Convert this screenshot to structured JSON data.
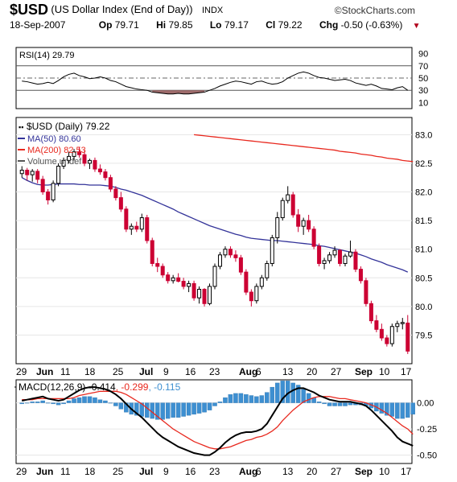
{
  "header": {
    "symbol": "$USD",
    "name": "(US Dollar Index (End of Day))",
    "exchange": "INDX",
    "brand": "©StockCharts.com",
    "date": "18-Sep-2007",
    "open_label": "Op",
    "open": "79.71",
    "high_label": "Hi",
    "high": "79.85",
    "low_label": "Lo",
    "low": "79.17",
    "close_label": "Cl",
    "close": "79.22",
    "change_label": "Chg",
    "change": "-0.50 (-0.63%)",
    "change_arrow": "▼"
  },
  "colors": {
    "up": "#000000",
    "down": "#cc0033",
    "ma50": "#333399",
    "ma200": "#e8281e",
    "macd_line": "#000000",
    "macd_signal": "#e8281e",
    "histogram": "#3d8fd1",
    "rsi_oversold_fill": "#9e6b6b"
  },
  "chart_data": [
    {
      "type": "line",
      "title": "RSI(14) 29.79",
      "ylim": [
        0,
        100
      ],
      "ticks": [
        "90",
        "70",
        "50",
        "30",
        "10"
      ],
      "reference_lines": [
        70,
        50,
        30
      ],
      "series": [
        {
          "name": "RSI(14)",
          "values": [
            45,
            44,
            42,
            40,
            41,
            43,
            41,
            46,
            52,
            56,
            58,
            54,
            52,
            49,
            50,
            52,
            50,
            46,
            44,
            40,
            36,
            34,
            32,
            31,
            30,
            27,
            26,
            25,
            24,
            24,
            25,
            24,
            24,
            25,
            26,
            27,
            30,
            33,
            37,
            40,
            43,
            45,
            44,
            42,
            40,
            44,
            45,
            42,
            40,
            41,
            44,
            50,
            54,
            58,
            60,
            58,
            54,
            51,
            50,
            48,
            46,
            47,
            48,
            46,
            42,
            40,
            38,
            40,
            37,
            33,
            32,
            31,
            34,
            36,
            30
          ]
        }
      ]
    },
    {
      "type": "candlestick",
      "title": "$USD (Daily) 79.22",
      "legend": [
        {
          "label": "MA(50) 80.60",
          "color": "#333399"
        },
        {
          "label": "MA(200) 82.53",
          "color": "#e8281e"
        },
        {
          "label": "Volume undef",
          "color": "#555555"
        }
      ],
      "ylim": [
        79.0,
        83.3
      ],
      "y_ticks": [
        "83.0",
        "82.5",
        "82.0",
        "81.5",
        "81.0",
        "80.5",
        "80.0",
        "79.5"
      ],
      "x_ticks": [
        "29",
        "Jun",
        "11",
        "18",
        "25",
        "Jul",
        "9",
        "16",
        "23",
        "Aug",
        "6",
        "13",
        "20",
        "27",
        "Sep",
        "10",
        "17"
      ],
      "ohlc": [
        [
          82.32,
          82.45,
          82.25,
          82.38
        ],
        [
          82.38,
          82.42,
          82.2,
          82.3
        ],
        [
          82.3,
          82.4,
          82.18,
          82.36
        ],
        [
          82.36,
          82.4,
          82.15,
          82.22
        ],
        [
          82.22,
          82.28,
          81.95,
          82.0
        ],
        [
          82.0,
          82.05,
          81.78,
          81.86
        ],
        [
          81.86,
          82.2,
          81.82,
          82.15
        ],
        [
          82.15,
          82.5,
          82.1,
          82.45
        ],
        [
          82.45,
          82.6,
          82.4,
          82.55
        ],
        [
          82.55,
          82.7,
          82.5,
          82.62
        ],
        [
          82.62,
          82.75,
          82.55,
          82.7
        ],
        [
          82.7,
          82.78,
          82.6,
          82.65
        ],
        [
          82.65,
          82.72,
          82.45,
          82.5
        ],
        [
          82.5,
          82.58,
          82.4,
          82.55
        ],
        [
          82.55,
          82.6,
          82.35,
          82.4
        ],
        [
          82.4,
          82.48,
          82.3,
          82.35
        ],
        [
          82.35,
          82.4,
          82.2,
          82.25
        ],
        [
          82.25,
          82.3,
          82.0,
          82.05
        ],
        [
          82.05,
          82.1,
          81.85,
          81.9
        ],
        [
          81.9,
          82.0,
          81.65,
          81.7
        ],
        [
          81.7,
          81.75,
          81.3,
          81.35
        ],
        [
          81.35,
          81.45,
          81.25,
          81.4
        ],
        [
          81.4,
          81.48,
          81.3,
          81.35
        ],
        [
          81.35,
          81.62,
          81.3,
          81.55
        ],
        [
          81.55,
          81.6,
          81.1,
          81.15
        ],
        [
          81.15,
          81.2,
          80.7,
          80.75
        ],
        [
          80.75,
          80.85,
          80.6,
          80.7
        ],
        [
          80.7,
          80.75,
          80.5,
          80.55
        ],
        [
          80.55,
          80.6,
          80.4,
          80.45
        ],
        [
          80.45,
          80.55,
          80.4,
          80.5
        ],
        [
          80.5,
          80.58,
          80.42,
          80.44
        ],
        [
          80.44,
          80.5,
          80.3,
          80.35
        ],
        [
          80.35,
          80.45,
          80.25,
          80.4
        ],
        [
          80.4,
          80.45,
          80.1,
          80.15
        ],
        [
          80.15,
          80.35,
          80.05,
          80.3
        ],
        [
          80.3,
          80.32,
          80.0,
          80.05
        ],
        [
          80.05,
          80.4,
          80.02,
          80.35
        ],
        [
          80.35,
          80.75,
          80.3,
          80.7
        ],
        [
          80.7,
          80.95,
          80.65,
          80.9
        ],
        [
          80.9,
          81.05,
          80.85,
          81.0
        ],
        [
          81.0,
          81.05,
          80.85,
          80.9
        ],
        [
          80.9,
          80.98,
          80.78,
          80.85
        ],
        [
          80.85,
          80.9,
          80.55,
          80.6
        ],
        [
          80.6,
          80.65,
          80.2,
          80.25
        ],
        [
          80.25,
          80.3,
          80.0,
          80.1
        ],
        [
          80.1,
          80.4,
          80.05,
          80.35
        ],
        [
          80.35,
          80.55,
          80.3,
          80.5
        ],
        [
          80.5,
          80.8,
          80.45,
          80.75
        ],
        [
          80.75,
          81.25,
          80.7,
          81.2
        ],
        [
          81.2,
          81.65,
          81.1,
          81.55
        ],
        [
          81.55,
          81.9,
          81.5,
          81.85
        ],
        [
          81.85,
          82.1,
          81.8,
          81.95
        ],
        [
          81.95,
          82.0,
          81.55,
          81.6
        ],
        [
          81.6,
          81.7,
          81.3,
          81.4
        ],
        [
          81.4,
          81.55,
          81.25,
          81.5
        ],
        [
          81.5,
          81.6,
          81.3,
          81.35
        ],
        [
          81.35,
          81.4,
          81.0,
          81.05
        ],
        [
          81.05,
          81.1,
          80.7,
          80.75
        ],
        [
          80.75,
          80.85,
          80.65,
          80.8
        ],
        [
          80.8,
          80.95,
          80.75,
          80.9
        ],
        [
          80.9,
          81.05,
          80.85,
          80.98
        ],
        [
          80.98,
          81.0,
          80.7,
          80.75
        ],
        [
          80.75,
          80.92,
          80.7,
          80.88
        ],
        [
          80.88,
          81.15,
          80.85,
          80.95
        ],
        [
          80.95,
          81.0,
          80.6,
          80.65
        ],
        [
          80.65,
          80.7,
          80.4,
          80.45
        ],
        [
          80.45,
          80.5,
          80.0,
          80.05
        ],
        [
          80.05,
          80.1,
          79.7,
          79.75
        ],
        [
          79.75,
          79.85,
          79.55,
          79.6
        ],
        [
          79.6,
          79.7,
          79.4,
          79.45
        ],
        [
          79.45,
          79.5,
          79.3,
          79.35
        ],
        [
          79.35,
          79.7,
          79.3,
          79.65
        ],
        [
          79.65,
          79.75,
          79.55,
          79.7
        ],
        [
          79.7,
          79.8,
          79.6,
          79.72
        ],
        [
          79.71,
          79.85,
          79.17,
          79.22
        ]
      ],
      "ma50": [
        82.25,
        82.2,
        82.16,
        82.13,
        82.12,
        82.12,
        82.13,
        82.14,
        82.14,
        82.14,
        82.14,
        82.13,
        82.13,
        82.12,
        82.12,
        82.12,
        82.11,
        82.1,
        82.08,
        82.05,
        82.03,
        82.0,
        81.97,
        81.94,
        81.9,
        81.86,
        81.82,
        81.78,
        81.74,
        81.7,
        81.65,
        81.61,
        81.57,
        81.53,
        81.49,
        81.45,
        81.41,
        81.38,
        81.35,
        81.32,
        81.29,
        81.26,
        81.24,
        81.21,
        81.19,
        81.18,
        81.17,
        81.16,
        81.15,
        81.15,
        81.14,
        81.13,
        81.12,
        81.11,
        81.1,
        81.09,
        81.08,
        81.06,
        81.05,
        81.03,
        81.01,
        80.99,
        80.97,
        80.95,
        80.93,
        80.9,
        80.87,
        80.83,
        80.8,
        80.77,
        80.73,
        80.7,
        80.67,
        80.64,
        80.6
      ],
      "ma200_start_index": 33,
      "ma200": [
        83.0,
        82.99,
        82.98,
        82.97,
        82.96,
        82.95,
        82.94,
        82.93,
        82.92,
        82.91,
        82.9,
        82.89,
        82.88,
        82.87,
        82.86,
        82.85,
        82.84,
        82.83,
        82.82,
        82.81,
        82.8,
        82.79,
        82.78,
        82.77,
        82.76,
        82.75,
        82.74,
        82.73,
        82.71,
        82.7,
        82.69,
        82.68,
        82.66,
        82.65,
        82.64,
        82.62,
        82.61,
        82.59,
        82.58,
        82.57,
        82.55,
        82.54,
        82.53
      ]
    },
    {
      "type": "line",
      "title": "MACD(12,26,9) -0.414, -0.299, -0.115",
      "ylim": [
        -0.58,
        0.22
      ],
      "y_ticks": [
        "0.00",
        "-0.25",
        "-0.50"
      ],
      "x_ticks": [
        "29",
        "Jun",
        "11",
        "18",
        "25",
        "Jul",
        "9",
        "16",
        "23",
        "Aug",
        "6",
        "13",
        "20",
        "27",
        "Sep",
        "10",
        "17"
      ],
      "series": [
        {
          "name": "MACD(12,26,9)",
          "values": [
            0.02,
            0.03,
            0.04,
            0.05,
            0.06,
            0.04,
            0.03,
            0.02,
            0.03,
            0.06,
            0.09,
            0.12,
            0.14,
            0.15,
            0.15,
            0.14,
            0.13,
            0.11,
            0.08,
            0.04,
            -0.01,
            -0.06,
            -0.1,
            -0.14,
            -0.19,
            -0.24,
            -0.29,
            -0.33,
            -0.36,
            -0.39,
            -0.42,
            -0.44,
            -0.46,
            -0.48,
            -0.49,
            -0.5,
            -0.5,
            -0.47,
            -0.43,
            -0.38,
            -0.34,
            -0.31,
            -0.29,
            -0.28,
            -0.28,
            -0.27,
            -0.25,
            -0.2,
            -0.12,
            -0.04,
            0.04,
            0.09,
            0.12,
            0.14,
            0.14,
            0.12,
            0.1,
            0.07,
            0.05,
            0.03,
            0.02,
            0.01,
            0.01,
            0.01,
            0.0,
            -0.01,
            -0.03,
            -0.07,
            -0.12,
            -0.17,
            -0.22,
            -0.27,
            -0.33,
            -0.37,
            -0.39,
            -0.41
          ]
        },
        {
          "name": "signal",
          "values": [
            0.03,
            0.03,
            0.03,
            0.04,
            0.04,
            0.04,
            0.04,
            0.04,
            0.04,
            0.04,
            0.05,
            0.07,
            0.08,
            0.09,
            0.1,
            0.11,
            0.11,
            0.11,
            0.11,
            0.1,
            0.08,
            0.05,
            0.02,
            -0.01,
            -0.05,
            -0.09,
            -0.13,
            -0.17,
            -0.21,
            -0.25,
            -0.28,
            -0.31,
            -0.34,
            -0.37,
            -0.39,
            -0.41,
            -0.43,
            -0.44,
            -0.44,
            -0.43,
            -0.42,
            -0.4,
            -0.38,
            -0.36,
            -0.35,
            -0.33,
            -0.32,
            -0.3,
            -0.27,
            -0.23,
            -0.17,
            -0.12,
            -0.07,
            -0.03,
            0.01,
            0.03,
            0.05,
            0.06,
            0.06,
            0.06,
            0.05,
            0.04,
            0.04,
            0.03,
            0.02,
            0.01,
            0.0,
            -0.02,
            -0.04,
            -0.07,
            -0.1,
            -0.14,
            -0.18,
            -0.22,
            -0.25,
            -0.3
          ]
        }
      ],
      "histogram": [
        -0.01,
        0.0,
        0.01,
        0.01,
        0.02,
        0.0,
        -0.01,
        -0.02,
        -0.01,
        0.02,
        0.04,
        0.05,
        0.06,
        0.06,
        0.05,
        0.03,
        0.02,
        0.0,
        -0.03,
        -0.06,
        -0.09,
        -0.11,
        -0.12,
        -0.13,
        -0.14,
        -0.15,
        -0.16,
        -0.16,
        -0.15,
        -0.14,
        -0.14,
        -0.13,
        -0.12,
        -0.11,
        -0.1,
        -0.09,
        -0.07,
        -0.03,
        0.01,
        0.05,
        0.08,
        0.09,
        0.09,
        0.08,
        0.07,
        0.06,
        0.07,
        0.1,
        0.15,
        0.19,
        0.21,
        0.21,
        0.19,
        0.17,
        0.13,
        0.09,
        0.05,
        0.01,
        -0.01,
        -0.03,
        -0.03,
        -0.03,
        -0.03,
        -0.02,
        -0.02,
        -0.02,
        -0.03,
        -0.05,
        -0.08,
        -0.1,
        -0.12,
        -0.13,
        -0.15,
        -0.15,
        -0.14,
        -0.11
      ]
    }
  ]
}
